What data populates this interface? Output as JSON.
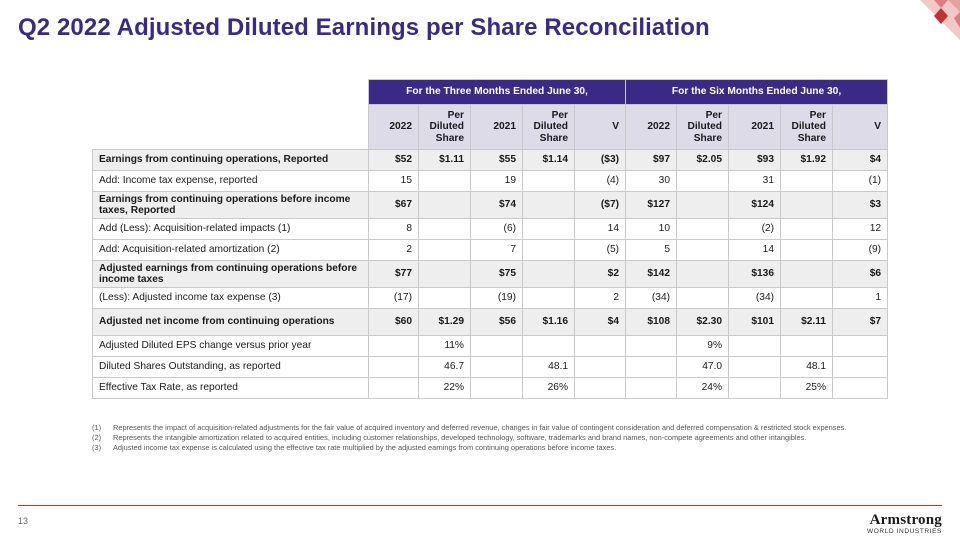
{
  "title": "Q2 2022 Adjusted Diluted Earnings per Share Reconciliation",
  "table": {
    "group_headers": [
      "For the Three Months Ended June 30,",
      "For the Six Months Ended June 30,"
    ],
    "columns": [
      "2022",
      "Per Diluted Share",
      "2021",
      "Per Diluted Share",
      "V",
      "2022",
      "Per Diluted Share",
      "2021",
      "Per Diluted Share",
      "V"
    ],
    "rows": [
      {
        "label": "Earnings from continuing operations, Reported",
        "bold": true,
        "tall": false,
        "cells": [
          "$52",
          "$1.11",
          "$55",
          "$1.14",
          "($3)",
          "$97",
          "$2.05",
          "$93",
          "$1.92",
          "$4"
        ]
      },
      {
        "label": "Add: Income tax expense, reported",
        "bold": false,
        "tall": false,
        "cells": [
          "15",
          "",
          "19",
          "",
          "(4)",
          "30",
          "",
          "31",
          "",
          "(1)"
        ]
      },
      {
        "label": "Earnings from continuing operations before income taxes, Reported",
        "bold": true,
        "tall": true,
        "cells": [
          "$67",
          "",
          "$74",
          "",
          "($7)",
          "$127",
          "",
          "$124",
          "",
          "$3"
        ]
      },
      {
        "label": "Add (Less): Acquisition-related impacts (1)",
        "bold": false,
        "tall": false,
        "cells": [
          "8",
          "",
          "(6)",
          "",
          "14",
          "10",
          "",
          "(2)",
          "",
          "12"
        ]
      },
      {
        "label": "Add: Acquisition-related amortization (2)",
        "bold": false,
        "tall": false,
        "cells": [
          "2",
          "",
          "7",
          "",
          "(5)",
          "5",
          "",
          "14",
          "",
          "(9)"
        ]
      },
      {
        "label": "Adjusted earnings from continuing operations before income taxes",
        "bold": true,
        "tall": true,
        "cells": [
          "$77",
          "",
          "$75",
          "",
          "$2",
          "$142",
          "",
          "$136",
          "",
          "$6"
        ]
      },
      {
        "label": "(Less): Adjusted income tax expense (3)",
        "bold": false,
        "tall": false,
        "cells": [
          "(17)",
          "",
          "(19)",
          "",
          "2",
          "(34)",
          "",
          "(34)",
          "",
          "1"
        ]
      },
      {
        "label": "Adjusted net income from continuing operations",
        "bold": true,
        "tall": true,
        "cells": [
          "$60",
          "$1.29",
          "$56",
          "$1.16",
          "$4",
          "$108",
          "$2.30",
          "$101",
          "$2.11",
          "$7"
        ]
      },
      {
        "label": "Adjusted Diluted EPS change versus prior year",
        "bold": false,
        "tall": false,
        "cells": [
          "",
          "11%",
          "",
          "",
          "",
          "",
          "9%",
          "",
          "",
          ""
        ]
      },
      {
        "label": "Diluted Shares Outstanding, as reported",
        "bold": false,
        "tall": false,
        "cells": [
          "",
          "46.7",
          "",
          "48.1",
          "",
          "",
          "47.0",
          "",
          "48.1",
          ""
        ]
      },
      {
        "label": "Effective Tax Rate, as reported",
        "bold": false,
        "tall": false,
        "cells": [
          "",
          "22%",
          "",
          "26%",
          "",
          "",
          "24%",
          "",
          "25%",
          ""
        ]
      }
    ]
  },
  "notes": [
    {
      "num": "(1)",
      "text": "Represents the impact of acquisition-related adjustments for the fair value of acquired inventory and deferred revenue, changes in fair value of contingent consideration and deferred compensation & restricted stock expenses."
    },
    {
      "num": "(2)",
      "text": "Represents the intangible amortization related to acquired entities, including customer relationships, developed technology, software, trademarks and brand names, non-compete agreements and other intangibles."
    },
    {
      "num": "(3)",
      "text": "Adjusted income tax expense is calculated using the effective tax rate multiplied by the adjusted earnings from continuing operations before income taxes."
    }
  ],
  "footer": {
    "page_number": "13",
    "brand_name": "Armstrong",
    "brand_sub": "WORLD INDUSTRIES"
  },
  "colors": {
    "accent": "#3b2a85",
    "rule": "#c0322f"
  },
  "icons": {
    "corner": "diamond-pattern-icon"
  }
}
